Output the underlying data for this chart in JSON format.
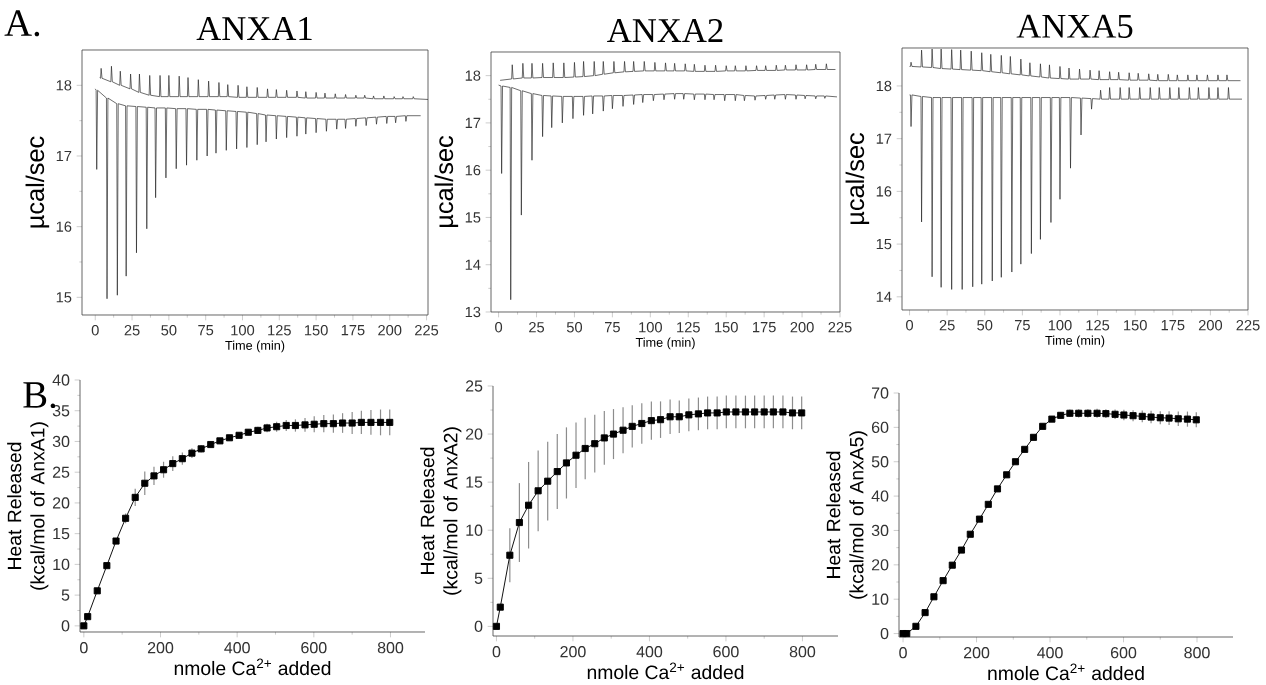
{
  "chart_data": [
    {
      "type": "line",
      "title": "ANXA1",
      "xlabel": "Time (min)",
      "ylabel": "µcal/sec",
      "annotations": [
        "A."
      ],
      "xlim": [
        -9,
        226
      ],
      "ylim": [
        14.75,
        18.5
      ],
      "xticks": [
        0,
        25,
        50,
        75,
        100,
        125,
        150,
        175,
        200,
        225
      ],
      "yticks": [
        15,
        16,
        17,
        18
      ],
      "series": [
        {
          "color": "#222222",
          "x": [
            3,
            3.6,
            4,
            4.6,
            10.6,
            11,
            11.6,
            16.6,
            17,
            17.6,
            23.6,
            24,
            24.6,
            29.6,
            30,
            30.6,
            36.6,
            37,
            37.6,
            43.6,
            44,
            44.6,
            49.6,
            50,
            50.6,
            56.6,
            57,
            57.6,
            62.6,
            63,
            63.6,
            69.6,
            70,
            70.6,
            76.6,
            77,
            77.6,
            83.6,
            84,
            84.6,
            89.6,
            90,
            90.6,
            96.6,
            97,
            97.6,
            102.6,
            103,
            103.6,
            109.6,
            110,
            110.6,
            116.6,
            117,
            117.6,
            122.6,
            123,
            123.6,
            129.6,
            130,
            130.6,
            136.6,
            137,
            137.6,
            142.6,
            143,
            143.6,
            149.6,
            150,
            150.6,
            155.6,
            156,
            156.6,
            162.6,
            163,
            163.6,
            169.6,
            170,
            170.6,
            176.6,
            177,
            177.6,
            182.6,
            183,
            183.6,
            188.6,
            189,
            189.6,
            195.6,
            196,
            196.6,
            202.6,
            203,
            203.6,
            208.6,
            209,
            209.6,
            215.6,
            216,
            216.6,
            226
          ],
          "values": [
            18.11,
            18.1,
            18.24,
            18.1,
            18.05,
            18.27,
            18.05,
            18.0,
            18.2,
            18.0,
            17.95,
            18.16,
            17.95,
            17.9,
            18.16,
            17.9,
            17.86,
            18.14,
            17.86,
            17.84,
            18.14,
            17.84,
            17.84,
            18.14,
            17.84,
            17.84,
            18.13,
            17.84,
            17.84,
            18.11,
            17.84,
            17.84,
            18.08,
            17.84,
            17.84,
            18.06,
            17.84,
            17.84,
            18.04,
            17.84,
            17.84,
            18.01,
            17.84,
            17.83,
            18.0,
            17.83,
            17.83,
            17.98,
            17.83,
            17.83,
            17.97,
            17.83,
            17.83,
            17.95,
            17.83,
            17.83,
            17.94,
            17.83,
            17.83,
            17.93,
            17.83,
            17.83,
            17.92,
            17.83,
            17.82,
            17.91,
            17.82,
            17.82,
            17.9,
            17.82,
            17.82,
            17.89,
            17.82,
            17.82,
            17.88,
            17.82,
            17.82,
            17.87,
            17.82,
            17.82,
            17.86,
            17.82,
            17.82,
            17.86,
            17.82,
            17.81,
            17.85,
            17.81,
            17.81,
            17.85,
            17.81,
            17.81,
            17.84,
            17.81,
            17.81,
            17.84,
            17.81,
            17.81,
            17.84,
            17.81,
            17.8
          ]
        },
        {
          "color": "#222222",
          "x": [
            0,
            0.6,
            1,
            1.6,
            7.6,
            8,
            8.6,
            14.6,
            15,
            15.6,
            20.6,
            21,
            21.6,
            27.6,
            28,
            28.6,
            34.6,
            35,
            35.6,
            40.6,
            41,
            41.6,
            47.6,
            48,
            48.6,
            54.6,
            55,
            55.6,
            61.6,
            62,
            62.6,
            68.6,
            69,
            69.6,
            75.6,
            76,
            76.6,
            81.6,
            82,
            82.6,
            88.6,
            89,
            89.6,
            95.6,
            96,
            96.6,
            102.6,
            103,
            103.6,
            109.6,
            110,
            110.6,
            115.6,
            116,
            116.6,
            122.6,
            123,
            123.6,
            129.6,
            130,
            130.6,
            136.6,
            137,
            137.6,
            142.6,
            143,
            143.6,
            149.6,
            150,
            150.6,
            156.6,
            157,
            157.6,
            163.6,
            164,
            164.6,
            169.6,
            170,
            170.6,
            176.6,
            177,
            177.6,
            183.6,
            184,
            184.6,
            190.6,
            191,
            191.6,
            197.6,
            198,
            198.6,
            203.6,
            204,
            204.6,
            210.6,
            211,
            211.6,
            221
          ],
          "values": [
            17.95,
            17.93,
            16.81,
            17.93,
            17.82,
            14.98,
            17.82,
            17.74,
            15.03,
            17.74,
            17.71,
            15.3,
            17.71,
            17.7,
            15.63,
            17.7,
            17.69,
            15.97,
            17.69,
            17.68,
            16.41,
            17.68,
            17.68,
            16.69,
            17.68,
            17.67,
            16.82,
            17.67,
            17.67,
            16.87,
            17.67,
            17.66,
            16.94,
            17.66,
            17.66,
            17.0,
            17.66,
            17.65,
            17.04,
            17.65,
            17.64,
            17.08,
            17.64,
            17.63,
            17.1,
            17.63,
            17.62,
            17.12,
            17.62,
            17.6,
            17.16,
            17.6,
            17.58,
            17.2,
            17.58,
            17.57,
            17.24,
            17.57,
            17.56,
            17.26,
            17.56,
            17.55,
            17.28,
            17.55,
            17.54,
            17.31,
            17.54,
            17.53,
            17.33,
            17.53,
            17.52,
            17.35,
            17.52,
            17.52,
            17.38,
            17.52,
            17.52,
            17.39,
            17.52,
            17.53,
            17.42,
            17.53,
            17.54,
            17.43,
            17.54,
            17.55,
            17.45,
            17.55,
            17.56,
            17.46,
            17.56,
            17.56,
            17.47,
            17.56,
            17.57,
            17.49,
            17.57,
            17.57
          ]
        }
      ]
    },
    {
      "type": "line",
      "title": "ANXA2",
      "xlabel": "Time (min)",
      "ylabel": "µcal/sec",
      "xlim": [
        -5,
        225
      ],
      "ylim": [
        13,
        18.5
      ],
      "xticks": [
        0,
        25,
        50,
        75,
        100,
        125,
        150,
        175,
        200,
        225
      ],
      "yticks": [
        13,
        14,
        15,
        16,
        17,
        18
      ],
      "series": [
        {
          "color": "#222222",
          "x": [
            1,
            8.6,
            9,
            9.6,
            15.6,
            16,
            16.6,
            21.6,
            22,
            22.6,
            28.6,
            29,
            29.6,
            35.6,
            36,
            36.6,
            42.6,
            43,
            43.6,
            49.6,
            50,
            50.6,
            55.6,
            56,
            56.6,
            62.6,
            63,
            63.6,
            68.6,
            69,
            69.6,
            75.6,
            76,
            76.6,
            82.6,
            83,
            83.6,
            88.6,
            89,
            89.6,
            95.6,
            96,
            96.6,
            102.6,
            103,
            103.6,
            109.6,
            110,
            110.6,
            115.6,
            116,
            116.6,
            122.6,
            123,
            123.6,
            128.6,
            129,
            129.6,
            135.6,
            136,
            136.6,
            142.6,
            143,
            143.6,
            149.6,
            150,
            150.6,
            155.6,
            156,
            156.6,
            162.6,
            163,
            163.6,
            169.6,
            170,
            170.6,
            175.6,
            176,
            176.6,
            182.6,
            183,
            183.6,
            188.6,
            189,
            189.6,
            195.6,
            196,
            196.6,
            202.6,
            203,
            203.6,
            208.6,
            209,
            209.6,
            215.6,
            216,
            216.6,
            222
          ],
          "values": [
            17.9,
            17.93,
            18.23,
            17.93,
            17.95,
            18.26,
            17.95,
            17.95,
            18.26,
            17.95,
            17.96,
            18.26,
            17.96,
            17.96,
            18.27,
            17.96,
            17.96,
            18.27,
            17.96,
            17.97,
            18.28,
            17.97,
            17.98,
            18.3,
            17.98,
            18.0,
            18.3,
            18.0,
            18.03,
            18.3,
            18.03,
            18.06,
            18.3,
            18.06,
            18.08,
            18.3,
            18.08,
            18.09,
            18.3,
            18.09,
            18.1,
            18.3,
            18.1,
            18.1,
            18.28,
            18.1,
            18.1,
            18.27,
            18.1,
            18.1,
            18.26,
            18.1,
            18.1,
            18.25,
            18.1,
            18.09,
            18.24,
            18.09,
            18.09,
            18.22,
            18.09,
            18.09,
            18.22,
            18.09,
            18.1,
            18.21,
            18.1,
            18.1,
            18.21,
            18.1,
            18.1,
            18.21,
            18.1,
            18.11,
            18.21,
            18.11,
            18.11,
            18.21,
            18.11,
            18.11,
            18.22,
            18.11,
            18.12,
            18.22,
            18.12,
            18.12,
            18.23,
            18.12,
            18.12,
            18.23,
            18.12,
            18.13,
            18.24,
            18.13,
            18.13,
            18.25,
            18.13,
            18.13
          ]
        },
        {
          "color": "#222222",
          "x": [
            0,
            1.6,
            2,
            2.6,
            7.6,
            8,
            8.6,
            14.6,
            15,
            15.6,
            21.6,
            22,
            22.6,
            28.6,
            29,
            29.6,
            34.6,
            35,
            35.6,
            41.6,
            42,
            42.6,
            48.6,
            49,
            49.6,
            55.6,
            56,
            56.6,
            61.6,
            62,
            62.6,
            68.6,
            69,
            69.6,
            74.6,
            75,
            75.6,
            81.6,
            82,
            82.6,
            88.6,
            89,
            89.6,
            94.6,
            95,
            95.6,
            101.6,
            102,
            102.6,
            108.6,
            109,
            109.6,
            115.6,
            116,
            116.6,
            121.6,
            122,
            122.6,
            128.6,
            129,
            129.6,
            135.6,
            136,
            136.6,
            141.6,
            142,
            142.6,
            148.6,
            149,
            149.6,
            155.6,
            156,
            156.6,
            161.6,
            162,
            162.6,
            168.6,
            169,
            169.6,
            175.6,
            176,
            176.6,
            181.6,
            182,
            182.6,
            188.6,
            189,
            189.6,
            195.6,
            196,
            196.6,
            201.6,
            202,
            202.6,
            208.6,
            209,
            209.6,
            214.6,
            215,
            215.6,
            223
          ],
          "values": [
            17.8,
            17.78,
            15.93,
            17.78,
            17.75,
            13.26,
            17.75,
            17.68,
            15.05,
            17.68,
            17.62,
            16.21,
            17.62,
            17.58,
            16.71,
            17.58,
            17.57,
            16.9,
            17.57,
            17.56,
            17.0,
            17.56,
            17.56,
            17.09,
            17.56,
            17.56,
            17.16,
            17.56,
            17.57,
            17.19,
            17.57,
            17.57,
            17.25,
            17.57,
            17.58,
            17.3,
            17.58,
            17.58,
            17.35,
            17.58,
            17.59,
            17.39,
            17.59,
            17.6,
            17.43,
            17.6,
            17.6,
            17.47,
            17.6,
            17.61,
            17.49,
            17.61,
            17.62,
            17.5,
            17.62,
            17.62,
            17.5,
            17.62,
            17.61,
            17.49,
            17.61,
            17.61,
            17.49,
            17.61,
            17.6,
            17.49,
            17.6,
            17.6,
            17.47,
            17.6,
            17.6,
            17.47,
            17.6,
            17.58,
            17.47,
            17.58,
            17.57,
            17.48,
            17.57,
            17.58,
            17.5,
            17.58,
            17.59,
            17.5,
            17.59,
            17.6,
            17.5,
            17.6,
            17.59,
            17.5,
            17.59,
            17.58,
            17.51,
            17.58,
            17.57,
            17.51,
            17.57,
            17.57,
            17.52,
            17.57,
            17.55
          ]
        }
      ]
    },
    {
      "type": "line",
      "title": "ANXA5",
      "xlabel": "Time (min)",
      "ylabel": "µcal/sec",
      "xlim": [
        -5,
        225
      ],
      "ylim": [
        13.75,
        18.72
      ],
      "xticks": [
        0,
        25,
        50,
        75,
        100,
        125,
        150,
        175,
        200,
        225
      ],
      "yticks": [
        14,
        15,
        16,
        17,
        18
      ],
      "series": [
        {
          "color": "#222222",
          "x": [
            0,
            0.6,
            1,
            1.6,
            7.6,
            8,
            8.6,
            14.6,
            15,
            15.6,
            20.6,
            21,
            21.6,
            27.6,
            28,
            28.6,
            33.6,
            34,
            34.6,
            40.6,
            41,
            41.6,
            47.6,
            48,
            48.6,
            53.6,
            54,
            54.6,
            60.6,
            61,
            61.6,
            66.6,
            67,
            67.6,
            73.6,
            74,
            74.6,
            79.6,
            80,
            80.6,
            86.6,
            87,
            87.6,
            92.6,
            93,
            93.6,
            99.6,
            100,
            100.6,
            105.6,
            106,
            106.6,
            112.6,
            113,
            113.6,
            119.6,
            120,
            120.6,
            125.6,
            126,
            126.6,
            132.6,
            133,
            133.6,
            138.6,
            139,
            139.6,
            145.6,
            146,
            146.6,
            151.6,
            152,
            152.6,
            158.6,
            159,
            159.6,
            164.6,
            165,
            165.6,
            171.6,
            172,
            172.6,
            177.6,
            178,
            178.6,
            184.6,
            185,
            185.6,
            190.6,
            191,
            191.6,
            197.6,
            198,
            198.6,
            204.6,
            205,
            205.6,
            210.6,
            211,
            211.6,
            220
          ],
          "values": [
            18.37,
            18.37,
            18.45,
            18.37,
            18.36,
            18.68,
            18.36,
            18.35,
            18.7,
            18.35,
            18.33,
            18.7,
            18.33,
            18.32,
            18.69,
            18.32,
            18.31,
            18.68,
            18.31,
            18.3,
            18.66,
            18.3,
            18.29,
            18.63,
            18.29,
            18.27,
            18.6,
            18.27,
            18.25,
            18.58,
            18.25,
            18.23,
            18.56,
            18.23,
            18.21,
            18.51,
            18.21,
            18.19,
            18.44,
            18.19,
            18.17,
            18.42,
            18.17,
            18.15,
            18.4,
            18.15,
            18.14,
            18.37,
            18.14,
            18.13,
            18.34,
            18.13,
            18.13,
            18.32,
            18.13,
            18.13,
            18.3,
            18.13,
            18.12,
            18.29,
            18.12,
            18.12,
            18.27,
            18.12,
            18.12,
            18.26,
            18.12,
            18.11,
            18.25,
            18.11,
            18.11,
            18.24,
            18.11,
            18.11,
            18.23,
            18.11,
            18.1,
            18.22,
            18.1,
            18.1,
            18.22,
            18.1,
            18.1,
            18.21,
            18.1,
            18.1,
            18.21,
            18.1,
            18.1,
            18.21,
            18.1,
            18.1,
            18.21,
            18.1,
            18.1,
            18.21,
            18.1,
            18.1,
            18.21,
            18.1,
            18.1
          ]
        },
        {
          "color": "#222222",
          "x": [
            0,
            0.6,
            1,
            1.6,
            7.6,
            8,
            8.6,
            14.6,
            15,
            15.6,
            20.6,
            21,
            21.6,
            27.6,
            28,
            28.6,
            34.6,
            35,
            35.6,
            41.6,
            42,
            42.6,
            47.6,
            48,
            48.6,
            54.6,
            55,
            55.6,
            60.6,
            61,
            61.6,
            67.6,
            68,
            68.6,
            73.6,
            74,
            74.6,
            80.6,
            81,
            81.6,
            86.6,
            87,
            87.6,
            93.6,
            94,
            94.6,
            99.6,
            100,
            100.6,
            106.6,
            107,
            107.6,
            113.6,
            114,
            114.6,
            120.6,
            121,
            121.6,
            126.6,
            127,
            127.6,
            132.6,
            133,
            133.6,
            139.6,
            140,
            140.6,
            145.6,
            146,
            146.6,
            152.6,
            153,
            153.6,
            159.6,
            160,
            160.6,
            165.6,
            166,
            166.6,
            172.6,
            173,
            173.6,
            178.6,
            179,
            179.6,
            185.6,
            186,
            186.6,
            191.6,
            192,
            192.6,
            198.6,
            199,
            199.6,
            204.6,
            205,
            205.6,
            211.6,
            212,
            212.6,
            221
          ],
          "values": [
            17.83,
            17.83,
            17.23,
            17.83,
            17.8,
            15.42,
            17.8,
            17.78,
            14.38,
            17.78,
            17.78,
            14.18,
            17.78,
            17.78,
            14.14,
            17.78,
            17.78,
            14.14,
            17.78,
            17.78,
            14.19,
            17.78,
            17.78,
            14.24,
            17.78,
            17.78,
            14.3,
            17.78,
            17.78,
            14.37,
            17.78,
            17.78,
            14.47,
            17.78,
            17.78,
            14.62,
            17.78,
            17.78,
            14.82,
            17.78,
            17.78,
            15.09,
            17.78,
            17.78,
            15.41,
            17.78,
            17.78,
            15.85,
            17.78,
            17.78,
            16.44,
            17.78,
            17.77,
            17.07,
            17.77,
            17.76,
            17.56,
            17.76,
            17.75,
            17.92,
            17.75,
            17.75,
            17.97,
            17.75,
            17.75,
            17.97,
            17.75,
            17.75,
            17.97,
            17.75,
            17.75,
            17.97,
            17.75,
            17.75,
            17.97,
            17.75,
            17.75,
            17.97,
            17.75,
            17.75,
            17.97,
            17.75,
            17.75,
            17.97,
            17.75,
            17.75,
            17.97,
            17.75,
            17.75,
            17.97,
            17.75,
            17.75,
            17.97,
            17.75,
            17.75,
            17.97,
            17.75,
            17.75,
            17.97,
            17.75,
            17.75
          ]
        }
      ]
    },
    {
      "type": "line",
      "xlabel": "nmole Ca$^{2+}$ added",
      "ylabel": "Heat Released (kcal/mol of AnxA1)",
      "annotations": [
        "B."
      ],
      "xlim": [
        -10,
        890
      ],
      "ylim": [
        -1,
        40
      ],
      "xticks": [
        0,
        200,
        400,
        600,
        800
      ],
      "yticks": [
        0,
        5,
        10,
        15,
        20,
        25,
        30,
        35,
        40
      ],
      "marker": "square",
      "color": "#000000",
      "x": [
        0,
        10,
        35,
        60,
        84,
        109,
        134,
        159,
        183,
        208,
        232,
        257,
        282,
        306,
        331,
        355,
        380,
        405,
        429,
        454,
        478,
        503,
        528,
        552,
        577,
        601,
        626,
        651,
        675,
        700,
        724,
        749,
        774,
        798
      ],
      "values": [
        0,
        1.5,
        5.7,
        9.8,
        13.8,
        17.5,
        20.9,
        23.2,
        24.4,
        25.4,
        26.4,
        27.2,
        28.1,
        28.8,
        29.5,
        30.1,
        30.6,
        31.0,
        31.5,
        31.8,
        32.2,
        32.4,
        32.6,
        32.6,
        32.7,
        32.8,
        32.9,
        32.9,
        33.0,
        33.0,
        33.1,
        33.1,
        33.1,
        33.1
      ],
      "errors": [
        null,
        null,
        0.3,
        0.4,
        0.5,
        0.8,
        1.4,
        1.9,
        1.5,
        1.3,
        1.2,
        1.0,
        0.8,
        0.6,
        0.5,
        0.4,
        0.4,
        0.4,
        0.5,
        0.6,
        0.7,
        0.8,
        0.9,
        1.0,
        1.1,
        1.3,
        1.4,
        1.5,
        1.6,
        1.8,
        1.9,
        2.0,
        2.1,
        2.1
      ]
    },
    {
      "type": "line",
      "xlabel": "nmole Ca$^{2+}$ added",
      "ylabel": "Heat Released (kcal/mol of AnxA2)",
      "xlim": [
        -9,
        893
      ],
      "ylim": [
        -1,
        25
      ],
      "xticks": [
        0,
        200,
        400,
        600,
        800
      ],
      "yticks": [
        0,
        5,
        10,
        15,
        20,
        25
      ],
      "marker": "square",
      "color": "#000000",
      "x": [
        0,
        10,
        35,
        60,
        84,
        109,
        134,
        159,
        183,
        208,
        232,
        257,
        282,
        306,
        331,
        355,
        380,
        405,
        429,
        454,
        478,
        503,
        528,
        552,
        577,
        601,
        626,
        651,
        675,
        700,
        724,
        749,
        774,
        798
      ],
      "values": [
        0,
        2.0,
        7.4,
        10.8,
        12.6,
        14.1,
        15.1,
        16.1,
        17.0,
        17.8,
        18.5,
        19.0,
        19.6,
        20.0,
        20.4,
        20.8,
        21.1,
        21.4,
        21.5,
        21.8,
        21.8,
        22.0,
        22.1,
        22.2,
        22.2,
        22.3,
        22.3,
        22.3,
        22.3,
        22.3,
        22.3,
        22.3,
        22.2,
        22.2
      ],
      "errors": [
        null,
        null,
        2.8,
        4.1,
        4.5,
        4.2,
        4.1,
        3.9,
        3.7,
        3.4,
        3.2,
        3.0,
        2.8,
        2.6,
        2.4,
        2.2,
        2.1,
        2.0,
        1.9,
        1.8,
        1.7,
        1.7,
        1.7,
        1.7,
        1.7,
        1.7,
        1.7,
        1.7,
        1.7,
        1.7,
        1.7,
        1.7,
        1.7,
        1.7
      ]
    },
    {
      "type": "line",
      "xlabel": "nmole Ca$^{2+}$ added",
      "ylabel": "Heat Released (kcal/mol of AnxA5)",
      "xlim": [
        -11,
        898
      ],
      "ylim": [
        -1,
        70
      ],
      "xticks": [
        0,
        200,
        400,
        600,
        800
      ],
      "yticks": [
        0,
        10,
        20,
        30,
        40,
        50,
        60,
        70
      ],
      "marker": "square",
      "color": "#000000",
      "x": [
        0,
        10,
        35,
        60,
        84,
        109,
        134,
        159,
        183,
        208,
        232,
        257,
        282,
        306,
        331,
        355,
        380,
        405,
        429,
        454,
        478,
        503,
        528,
        552,
        577,
        601,
        626,
        651,
        675,
        700,
        724,
        749,
        774,
        798
      ],
      "values": [
        0,
        0,
        2.1,
        6.1,
        10.7,
        15.4,
        19.9,
        24.3,
        28.9,
        33.3,
        37.6,
        42.1,
        46.2,
        50.0,
        53.6,
        57.1,
        60.3,
        62.4,
        63.5,
        64.1,
        64.1,
        64.1,
        64.1,
        64.0,
        63.8,
        63.6,
        63.4,
        63.2,
        63.0,
        62.8,
        62.7,
        62.5,
        62.4,
        62.2
      ],
      "errors": [
        null,
        null,
        null,
        null,
        null,
        null,
        null,
        null,
        null,
        null,
        null,
        null,
        null,
        null,
        null,
        null,
        null,
        0.8,
        1.0,
        1.1,
        1.2,
        1.2,
        1.3,
        1.3,
        1.4,
        1.5,
        1.6,
        1.7,
        1.8,
        1.9,
        2.0,
        2.1,
        2.2,
        2.2
      ]
    }
  ]
}
